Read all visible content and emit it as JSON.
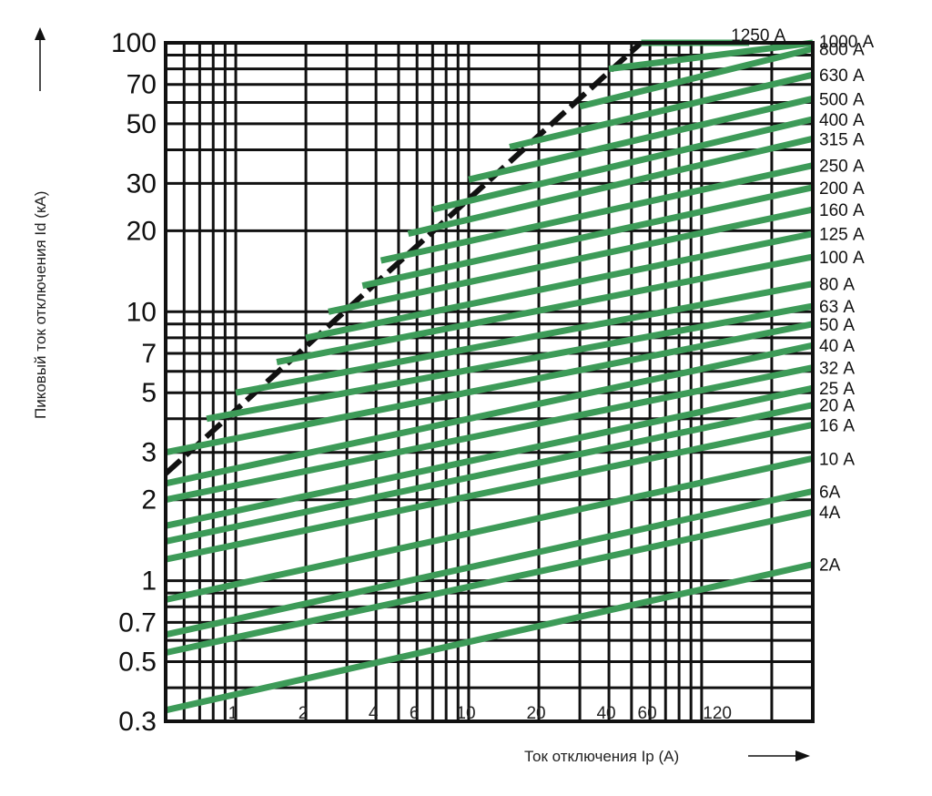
{
  "chart_data": {
    "type": "line",
    "title": "",
    "xlabel": "Ток отключения Ip (А)",
    "ylabel": "Пиковый ток отключения Id (кА)",
    "x_scale": "log",
    "y_scale": "log",
    "xlim": [
      0.5,
      300
    ],
    "ylim": [
      0.3,
      100
    ],
    "grid": true,
    "x_ticks": [
      {
        "value": 1,
        "label": "1"
      },
      {
        "value": 2,
        "label": "2"
      },
      {
        "value": 4,
        "label": "4"
      },
      {
        "value": 6,
        "label": "6"
      },
      {
        "value": 10,
        "label": "10"
      },
      {
        "value": 20,
        "label": "20"
      },
      {
        "value": 40,
        "label": "40"
      },
      {
        "value": 60,
        "label": "60"
      },
      {
        "value": 120,
        "label": "120"
      }
    ],
    "y_ticks": [
      {
        "value": 100,
        "label": "100"
      },
      {
        "value": 70,
        "label": "70"
      },
      {
        "value": 50,
        "label": "50"
      },
      {
        "value": 30,
        "label": "30"
      },
      {
        "value": 20,
        "label": "20"
      },
      {
        "value": 10,
        "label": "10"
      },
      {
        "value": 7,
        "label": "7"
      },
      {
        "value": 5,
        "label": "5"
      },
      {
        "value": 3,
        "label": "3"
      },
      {
        "value": 2,
        "label": "2"
      },
      {
        "value": 1,
        "label": "1"
      },
      {
        "value": 0.7,
        "label": "0.7"
      },
      {
        "value": 0.5,
        "label": "0.5"
      },
      {
        "value": 0.3,
        "label": "0.3"
      }
    ],
    "envelope": {
      "style": "dashed",
      "color": "#111111",
      "x": [
        0.5,
        55
      ],
      "y": [
        2.5,
        100
      ]
    },
    "series_color": "#3d9b58",
    "series": [
      {
        "name": "1250 А",
        "x": [
          55,
          160
        ],
        "y": [
          100,
          100
        ]
      },
      {
        "name": "1000 А",
        "x": [
          40,
          300
        ],
        "y": [
          80,
          100
        ]
      },
      {
        "name": "800 А",
        "x": [
          30,
          300
        ],
        "y": [
          58,
          95
        ]
      },
      {
        "name": "630 А",
        "x": [
          15,
          300
        ],
        "y": [
          41,
          76
        ]
      },
      {
        "name": "500 А",
        "x": [
          10,
          300
        ],
        "y": [
          31,
          62
        ]
      },
      {
        "name": "400 А",
        "x": [
          7,
          300
        ],
        "y": [
          24,
          52
        ]
      },
      {
        "name": "315 А",
        "x": [
          5.5,
          300
        ],
        "y": [
          19.5,
          44
        ]
      },
      {
        "name": "250 А",
        "x": [
          4.2,
          300
        ],
        "y": [
          15.5,
          35
        ]
      },
      {
        "name": "200 А",
        "x": [
          3.5,
          300
        ],
        "y": [
          12.5,
          29
        ]
      },
      {
        "name": "160 А",
        "x": [
          2.5,
          300
        ],
        "y": [
          10,
          24
        ]
      },
      {
        "name": "125 А",
        "x": [
          2,
          300
        ],
        "y": [
          8,
          19.5
        ]
      },
      {
        "name": "100 А",
        "x": [
          1.5,
          300
        ],
        "y": [
          6.5,
          16
        ]
      },
      {
        "name": "80 А",
        "x": [
          1,
          300
        ],
        "y": [
          5,
          12.7
        ]
      },
      {
        "name": "63 А",
        "x": [
          0.75,
          300
        ],
        "y": [
          4,
          10.5
        ]
      },
      {
        "name": "50 А",
        "x": [
          0.5,
          300
        ],
        "y": [
          3,
          9
        ]
      },
      {
        "name": "40 А",
        "x": [
          0.5,
          300
        ],
        "y": [
          2.3,
          7.5
        ]
      },
      {
        "name": "32 А",
        "x": [
          0.5,
          300
        ],
        "y": [
          2,
          6.2
        ]
      },
      {
        "name": "25 А",
        "x": [
          0.5,
          300
        ],
        "y": [
          1.6,
          5.2
        ]
      },
      {
        "name": "20 А",
        "x": [
          0.5,
          300
        ],
        "y": [
          1.4,
          4.5
        ]
      },
      {
        "name": "16 А",
        "x": [
          0.5,
          300
        ],
        "y": [
          1.2,
          3.8
        ]
      },
      {
        "name": "10 А",
        "x": [
          0.5,
          300
        ],
        "y": [
          0.85,
          2.85
        ]
      },
      {
        "name": "6А",
        "x": [
          0.5,
          300
        ],
        "y": [
          0.63,
          2.15
        ]
      },
      {
        "name": "4А",
        "x": [
          0.5,
          300
        ],
        "y": [
          0.54,
          1.8
        ]
      },
      {
        "name": "2А",
        "x": [
          0.5,
          300
        ],
        "y": [
          0.33,
          1.15
        ]
      }
    ]
  }
}
